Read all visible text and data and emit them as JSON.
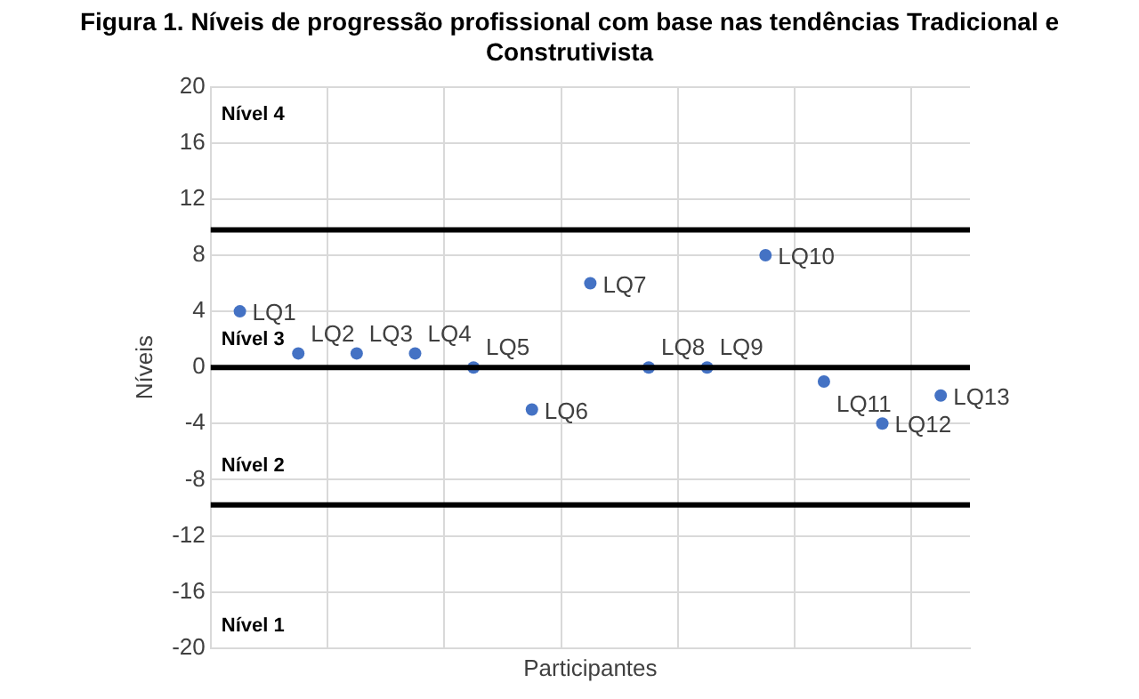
{
  "chart_data": {
    "type": "scatter",
    "title": "Figura 1. Níveis de progressão profissional com base nas tendências Tradicional e Construtivista",
    "xlabel": "Participantes",
    "ylabel": "Níveis",
    "categories": [
      null,
      null,
      null,
      null,
      null,
      null,
      null,
      null,
      null,
      null,
      null,
      null,
      null
    ],
    "ylim": [
      -20,
      20
    ],
    "yticks": [
      -20,
      -16,
      -12,
      -8,
      -4,
      0,
      4,
      8,
      12,
      16,
      20
    ],
    "grid": true,
    "tick_labels": "y",
    "legend": false,
    "marker": "circle",
    "series": [
      {
        "name": "LQ1",
        "color": "#4472c4",
        "values": [
          4,
          null,
          null,
          null,
          null,
          null,
          null,
          null,
          null,
          null,
          null,
          null,
          null
        ]
      },
      {
        "name": "LQ2",
        "color": "#4472c4",
        "values": [
          null,
          1,
          null,
          null,
          null,
          null,
          null,
          null,
          null,
          null,
          null,
          null,
          null
        ]
      },
      {
        "name": "LQ3",
        "color": "#4472c4",
        "values": [
          null,
          null,
          1,
          null,
          null,
          null,
          null,
          null,
          null,
          null,
          null,
          null,
          null
        ]
      },
      {
        "name": "LQ4",
        "color": "#4472c4",
        "values": [
          null,
          null,
          null,
          1,
          null,
          null,
          null,
          null,
          null,
          null,
          null,
          null,
          null
        ]
      },
      {
        "name": "LQ5",
        "color": "#4472c4",
        "values": [
          null,
          null,
          null,
          null,
          0,
          null,
          null,
          null,
          null,
          null,
          null,
          null,
          null
        ]
      },
      {
        "name": "LQ6",
        "color": "#4472c4",
        "values": [
          null,
          null,
          null,
          null,
          null,
          -3,
          null,
          null,
          null,
          null,
          null,
          null,
          null
        ]
      },
      {
        "name": "LQ7",
        "color": "#4472c4",
        "values": [
          null,
          null,
          null,
          null,
          null,
          null,
          6,
          null,
          null,
          null,
          null,
          null,
          null
        ]
      },
      {
        "name": "LQ8",
        "color": "#4472c4",
        "values": [
          null,
          null,
          null,
          null,
          null,
          null,
          null,
          0,
          null,
          null,
          null,
          null,
          null
        ]
      },
      {
        "name": "LQ9",
        "color": "#4472c4",
        "values": [
          null,
          null,
          null,
          null,
          null,
          null,
          null,
          null,
          0,
          null,
          null,
          null,
          null
        ]
      },
      {
        "name": "LQ10",
        "color": "#4472c4",
        "values": [
          null,
          null,
          null,
          null,
          null,
          null,
          null,
          null,
          null,
          8,
          null,
          null,
          null
        ]
      },
      {
        "name": "LQ11",
        "color": "#4472c4",
        "values": [
          null,
          null,
          null,
          null,
          null,
          null,
          null,
          null,
          null,
          null,
          -1,
          null,
          null
        ]
      },
      {
        "name": "LQ12",
        "color": "#4472c4",
        "values": [
          null,
          null,
          null,
          null,
          null,
          null,
          null,
          null,
          null,
          null,
          null,
          -4,
          null
        ]
      },
      {
        "name": "LQ13",
        "color": "#4472c4",
        "values": [
          null,
          null,
          null,
          null,
          null,
          null,
          null,
          null,
          null,
          null,
          null,
          null,
          -2
        ]
      }
    ],
    "ref_lines": [
      {
        "axis": "y",
        "value": 9.8,
        "color": "#000000"
      },
      {
        "axis": "y",
        "value": 0,
        "color": "#000000"
      },
      {
        "axis": "y",
        "value": -9.8,
        "color": "#000000"
      }
    ],
    "annotations": [
      "Nível 4",
      "Nível 3",
      "Nível 2",
      "Nível 1"
    ]
  }
}
